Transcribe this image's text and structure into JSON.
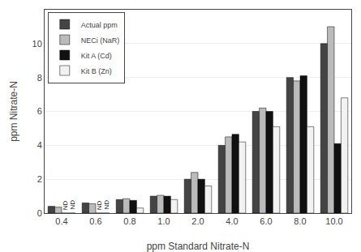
{
  "chart_data": {
    "type": "bar",
    "xlabel": "ppm Standard Nitrate-N",
    "ylabel": "ppm Nitrate-N",
    "categories": [
      "0.4",
      "0.6",
      "0.8",
      "1.0",
      "2.0",
      "4.0",
      "6.0",
      "8.0",
      "10.0"
    ],
    "series": [
      {
        "name": "Actual ppm",
        "color": "#444444",
        "values": [
          0.4,
          0.6,
          0.8,
          1.0,
          2.0,
          4.0,
          6.0,
          8.0,
          10.0
        ]
      },
      {
        "name": "NECi (NaR)",
        "color": "#bbbbbb",
        "values": [
          0.35,
          0.55,
          0.85,
          1.05,
          2.4,
          4.5,
          6.2,
          7.8,
          11.0
        ]
      },
      {
        "name": "Kit A (Cd)",
        "color": "#111111",
        "values": [
          0.0,
          0.0,
          0.75,
          1.0,
          2.0,
          4.65,
          6.0,
          8.1,
          4.1
        ]
      },
      {
        "name": "Kit B (Zn)",
        "color": "#f2f2f2",
        "values": [
          0.0,
          0.0,
          0.3,
          0.8,
          1.6,
          4.2,
          5.1,
          5.1,
          6.8
        ]
      }
    ],
    "annotations": [
      {
        "text": "ND",
        "x": "0.4",
        "series": "Kit A (Cd)"
      },
      {
        "text": "ND",
        "x": "0.4",
        "series": "Kit B (Zn)"
      },
      {
        "text": "ND",
        "x": "0.6",
        "series": "Kit A (Cd)"
      },
      {
        "text": "ND",
        "x": "0.6",
        "series": "Kit B (Zn)"
      }
    ],
    "ylim": [
      0,
      12
    ],
    "yticks": [
      0,
      2,
      4,
      6,
      8,
      10
    ],
    "grid": true,
    "legend": "upper left"
  }
}
